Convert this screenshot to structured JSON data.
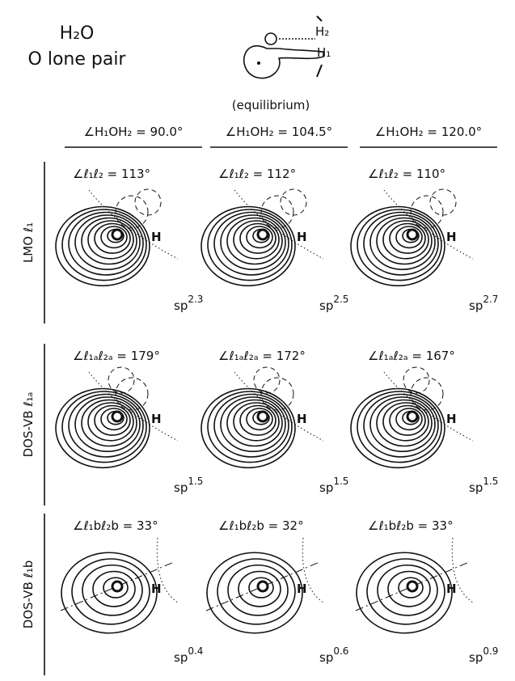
{
  "header": {
    "molecule": "H₂O",
    "subtitle": "O lone pair",
    "inset_labels": [
      "H₂",
      "H₁"
    ],
    "note": "(equilibrium)"
  },
  "columns": [
    "∠H₁OH₂ = 90.0°",
    "∠H₁OH₂ = 104.5°",
    "∠H₁OH₂ = 120.0°"
  ],
  "atom_label": "H",
  "rows": [
    {
      "label": "LMO ℓ₁",
      "panels": [
        {
          "angle": "∠ℓ₁ℓ₂ = 113°",
          "hybrid": "sp",
          "exponent": "2.3"
        },
        {
          "angle": "∠ℓ₁ℓ₂ = 112°",
          "hybrid": "sp",
          "exponent": "2.5"
        },
        {
          "angle": "∠ℓ₁ℓ₂ = 110°",
          "hybrid": "sp",
          "exponent": "2.7"
        }
      ]
    },
    {
      "label": "DOS-VB ℓ₁ₐ",
      "panels": [
        {
          "angle": "∠ℓ₁ₐℓ₂ₐ = 179°",
          "hybrid": "sp",
          "exponent": "1.5"
        },
        {
          "angle": "∠ℓ₁ₐℓ₂ₐ = 172°",
          "hybrid": "sp",
          "exponent": "1.5"
        },
        {
          "angle": "∠ℓ₁ₐℓ₂ₐ = 167°",
          "hybrid": "sp",
          "exponent": "1.5"
        }
      ]
    },
    {
      "label": "DOS-VB ℓ₁b",
      "panels": [
        {
          "angle": "∠ℓ₁bℓ₂b = 33°",
          "hybrid": "sp",
          "exponent": "0.4"
        },
        {
          "angle": "∠ℓ₁bℓ₂b = 32°",
          "hybrid": "sp",
          "exponent": "0.6"
        },
        {
          "angle": "∠ℓ₁bℓ₂b = 33°",
          "hybrid": "sp",
          "exponent": "0.9"
        }
      ]
    }
  ]
}
